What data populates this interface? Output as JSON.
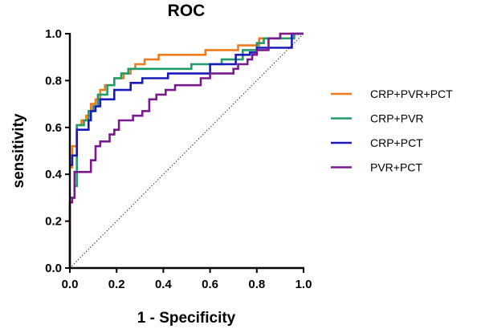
{
  "chart_data": {
    "type": "line",
    "title": "ROC",
    "xlabel": "1 - Specificity",
    "ylabel": "sensitivity",
    "xlim": [
      0,
      1
    ],
    "ylim": [
      0,
      1
    ],
    "xticks": [
      "0.0",
      "0.2",
      "0.4",
      "0.6",
      "0.8",
      "1.0"
    ],
    "yticks": [
      "0.0",
      "0.2",
      "0.4",
      "0.6",
      "0.8",
      "1.0"
    ],
    "grid": false,
    "legend_position": "right",
    "reference_line": {
      "style": "dotted",
      "from": [
        0,
        0
      ],
      "to": [
        1,
        1
      ]
    },
    "series": [
      {
        "name": "CRP+PVR+PCT",
        "color": "#f07b1c",
        "points": [
          [
            0,
            0.43
          ],
          [
            0.01,
            0.43
          ],
          [
            0.01,
            0.52
          ],
          [
            0.03,
            0.52
          ],
          [
            0.03,
            0.61
          ],
          [
            0.05,
            0.61
          ],
          [
            0.05,
            0.63
          ],
          [
            0.07,
            0.63
          ],
          [
            0.07,
            0.65
          ],
          [
            0.09,
            0.65
          ],
          [
            0.09,
            0.7
          ],
          [
            0.11,
            0.7
          ],
          [
            0.11,
            0.72
          ],
          [
            0.13,
            0.72
          ],
          [
            0.13,
            0.76
          ],
          [
            0.15,
            0.76
          ],
          [
            0.15,
            0.78
          ],
          [
            0.19,
            0.78
          ],
          [
            0.19,
            0.81
          ],
          [
            0.23,
            0.81
          ],
          [
            0.23,
            0.83
          ],
          [
            0.26,
            0.83
          ],
          [
            0.26,
            0.85
          ],
          [
            0.28,
            0.85
          ],
          [
            0.28,
            0.87
          ],
          [
            0.32,
            0.87
          ],
          [
            0.32,
            0.89
          ],
          [
            0.38,
            0.89
          ],
          [
            0.38,
            0.91
          ],
          [
            0.58,
            0.91
          ],
          [
            0.58,
            0.93
          ],
          [
            0.72,
            0.93
          ],
          [
            0.72,
            0.95
          ],
          [
            0.81,
            0.95
          ],
          [
            0.81,
            0.98
          ],
          [
            0.9,
            0.98
          ],
          [
            0.9,
            1.0
          ],
          [
            1.0,
            1.0
          ]
        ]
      },
      {
        "name": "CRP+PVR",
        "color": "#1e9c6a",
        "points": [
          [
            0,
            0.3
          ],
          [
            0.02,
            0.3
          ],
          [
            0.02,
            0.35
          ],
          [
            0.03,
            0.35
          ],
          [
            0.03,
            0.61
          ],
          [
            0.06,
            0.61
          ],
          [
            0.06,
            0.63
          ],
          [
            0.08,
            0.63
          ],
          [
            0.08,
            0.67
          ],
          [
            0.1,
            0.67
          ],
          [
            0.1,
            0.69
          ],
          [
            0.12,
            0.69
          ],
          [
            0.12,
            0.74
          ],
          [
            0.16,
            0.74
          ],
          [
            0.16,
            0.78
          ],
          [
            0.19,
            0.78
          ],
          [
            0.19,
            0.81
          ],
          [
            0.22,
            0.81
          ],
          [
            0.22,
            0.83
          ],
          [
            0.25,
            0.83
          ],
          [
            0.25,
            0.85
          ],
          [
            0.52,
            0.85
          ],
          [
            0.52,
            0.87
          ],
          [
            0.65,
            0.87
          ],
          [
            0.65,
            0.89
          ],
          [
            0.74,
            0.89
          ],
          [
            0.74,
            0.93
          ],
          [
            0.8,
            0.93
          ],
          [
            0.8,
            0.96
          ],
          [
            0.83,
            0.96
          ],
          [
            0.83,
            0.98
          ],
          [
            0.96,
            0.98
          ],
          [
            0.96,
            1.0
          ],
          [
            1.0,
            1.0
          ]
        ]
      },
      {
        "name": "CRP+PCT",
        "color": "#1a1ab8",
        "points": [
          [
            0,
            0.44
          ],
          [
            0.01,
            0.44
          ],
          [
            0.01,
            0.48
          ],
          [
            0.03,
            0.48
          ],
          [
            0.03,
            0.59
          ],
          [
            0.08,
            0.59
          ],
          [
            0.08,
            0.63
          ],
          [
            0.09,
            0.63
          ],
          [
            0.09,
            0.67
          ],
          [
            0.11,
            0.67
          ],
          [
            0.11,
            0.69
          ],
          [
            0.13,
            0.69
          ],
          [
            0.13,
            0.72
          ],
          [
            0.19,
            0.72
          ],
          [
            0.19,
            0.76
          ],
          [
            0.26,
            0.76
          ],
          [
            0.26,
            0.79
          ],
          [
            0.31,
            0.79
          ],
          [
            0.31,
            0.81
          ],
          [
            0.42,
            0.81
          ],
          [
            0.42,
            0.83
          ],
          [
            0.6,
            0.83
          ],
          [
            0.6,
            0.87
          ],
          [
            0.71,
            0.87
          ],
          [
            0.71,
            0.91
          ],
          [
            0.77,
            0.91
          ],
          [
            0.77,
            0.92
          ],
          [
            0.8,
            0.92
          ],
          [
            0.8,
            0.94
          ],
          [
            0.95,
            0.94
          ],
          [
            0.95,
            1.0
          ],
          [
            1.0,
            1.0
          ]
        ]
      },
      {
        "name": "PVR+PCT",
        "color": "#7a1a8e",
        "points": [
          [
            0,
            0.0
          ],
          [
            0,
            0.28
          ],
          [
            0.01,
            0.28
          ],
          [
            0.01,
            0.3
          ],
          [
            0.02,
            0.3
          ],
          [
            0.02,
            0.41
          ],
          [
            0.09,
            0.41
          ],
          [
            0.09,
            0.46
          ],
          [
            0.11,
            0.46
          ],
          [
            0.11,
            0.52
          ],
          [
            0.13,
            0.52
          ],
          [
            0.13,
            0.54
          ],
          [
            0.17,
            0.54
          ],
          [
            0.17,
            0.57
          ],
          [
            0.19,
            0.57
          ],
          [
            0.19,
            0.59
          ],
          [
            0.21,
            0.59
          ],
          [
            0.21,
            0.63
          ],
          [
            0.27,
            0.63
          ],
          [
            0.27,
            0.65
          ],
          [
            0.31,
            0.65
          ],
          [
            0.31,
            0.67
          ],
          [
            0.34,
            0.67
          ],
          [
            0.34,
            0.72
          ],
          [
            0.37,
            0.72
          ],
          [
            0.37,
            0.74
          ],
          [
            0.41,
            0.74
          ],
          [
            0.41,
            0.76
          ],
          [
            0.45,
            0.76
          ],
          [
            0.45,
            0.78
          ],
          [
            0.56,
            0.78
          ],
          [
            0.56,
            0.81
          ],
          [
            0.6,
            0.81
          ],
          [
            0.6,
            0.83
          ],
          [
            0.7,
            0.83
          ],
          [
            0.7,
            0.85
          ],
          [
            0.72,
            0.85
          ],
          [
            0.72,
            0.87
          ],
          [
            0.76,
            0.87
          ],
          [
            0.76,
            0.89
          ],
          [
            0.78,
            0.89
          ],
          [
            0.78,
            0.91
          ],
          [
            0.8,
            0.91
          ],
          [
            0.8,
            0.93
          ],
          [
            0.85,
            0.93
          ],
          [
            0.85,
            0.98
          ],
          [
            0.9,
            0.98
          ],
          [
            0.9,
            1.0
          ],
          [
            1.0,
            1.0
          ]
        ]
      }
    ]
  }
}
